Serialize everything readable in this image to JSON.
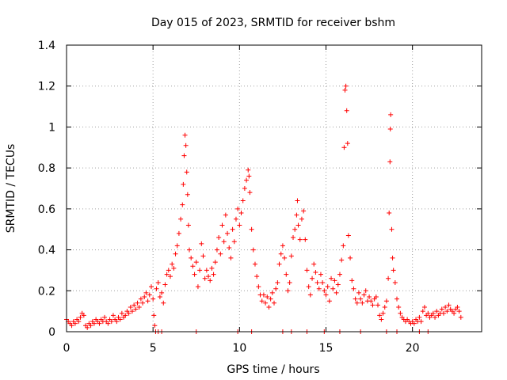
{
  "chart_data": {
    "type": "scatter",
    "title": "Day 015 of 2023, SRMTID for receiver bshm",
    "xlabel": "GPS time / hours",
    "ylabel": "SRMTID / TECUs",
    "xlim": [
      0,
      24
    ],
    "ylim": [
      0,
      1.4
    ],
    "xticks": [
      0,
      5,
      10,
      15,
      20
    ],
    "xtick_labels": [
      "0",
      "5",
      "10",
      "15",
      "20"
    ],
    "yticks": [
      0,
      0.2,
      0.4,
      0.6,
      0.8,
      1.0,
      1.2,
      1.4
    ],
    "ytick_labels": [
      "0",
      "0.2",
      "0.4",
      "0.6",
      "0.8",
      "1",
      "1.2",
      "1.4"
    ],
    "grid": true,
    "marker": "+",
    "color": "#ff0000",
    "series": [
      {
        "name": "SRMTID",
        "points": [
          [
            0.0,
            0.06
          ],
          [
            0.1,
            0.05
          ],
          [
            0.2,
            0.04
          ],
          [
            0.3,
            0.03
          ],
          [
            0.4,
            0.05
          ],
          [
            0.5,
            0.04
          ],
          [
            0.6,
            0.06
          ],
          [
            0.7,
            0.05
          ],
          [
            0.8,
            0.07
          ],
          [
            0.9,
            0.09
          ],
          [
            1.0,
            0.08
          ],
          [
            1.1,
            0.03
          ],
          [
            1.2,
            0.02
          ],
          [
            1.3,
            0.04
          ],
          [
            1.4,
            0.03
          ],
          [
            1.5,
            0.05
          ],
          [
            1.6,
            0.04
          ],
          [
            1.7,
            0.06
          ],
          [
            1.8,
            0.05
          ],
          [
            1.9,
            0.04
          ],
          [
            2.0,
            0.06
          ],
          [
            2.1,
            0.05
          ],
          [
            2.2,
            0.07
          ],
          [
            2.3,
            0.05
          ],
          [
            2.4,
            0.04
          ],
          [
            2.5,
            0.06
          ],
          [
            2.6,
            0.05
          ],
          [
            2.7,
            0.08
          ],
          [
            2.8,
            0.06
          ],
          [
            2.9,
            0.05
          ],
          [
            3.0,
            0.07
          ],
          [
            3.1,
            0.06
          ],
          [
            3.2,
            0.09
          ],
          [
            3.3,
            0.07
          ],
          [
            3.4,
            0.08
          ],
          [
            3.5,
            0.1
          ],
          [
            3.6,
            0.09
          ],
          [
            3.7,
            0.12
          ],
          [
            3.8,
            0.1
          ],
          [
            3.9,
            0.13
          ],
          [
            4.0,
            0.11
          ],
          [
            4.1,
            0.14
          ],
          [
            4.2,
            0.12
          ],
          [
            4.3,
            0.16
          ],
          [
            4.4,
            0.14
          ],
          [
            4.5,
            0.17
          ],
          [
            4.6,
            0.19
          ],
          [
            4.7,
            0.15
          ],
          [
            4.8,
            0.18
          ],
          [
            4.9,
            0.22
          ],
          [
            5.0,
            0.16
          ],
          [
            5.05,
            0.08
          ],
          [
            5.1,
            0.03
          ],
          [
            5.15,
            0.0
          ],
          [
            5.2,
            0.21
          ],
          [
            5.3,
            0.24
          ],
          [
            5.4,
            0.17
          ],
          [
            5.5,
            0.19
          ],
          [
            5.6,
            0.14
          ],
          [
            5.7,
            0.23
          ],
          [
            5.8,
            0.28
          ],
          [
            5.9,
            0.3
          ],
          [
            6.0,
            0.27
          ],
          [
            6.1,
            0.33
          ],
          [
            6.2,
            0.31
          ],
          [
            6.3,
            0.38
          ],
          [
            6.4,
            0.42
          ],
          [
            6.5,
            0.48
          ],
          [
            6.6,
            0.55
          ],
          [
            6.7,
            0.62
          ],
          [
            6.75,
            0.72
          ],
          [
            6.8,
            0.86
          ],
          [
            6.85,
            0.96
          ],
          [
            6.9,
            0.91
          ],
          [
            6.95,
            0.78
          ],
          [
            7.0,
            0.67
          ],
          [
            7.05,
            0.52
          ],
          [
            7.1,
            0.4
          ],
          [
            7.2,
            0.36
          ],
          [
            7.3,
            0.32
          ],
          [
            7.4,
            0.28
          ],
          [
            7.5,
            0.34
          ],
          [
            7.6,
            0.22
          ],
          [
            7.7,
            0.3
          ],
          [
            7.8,
            0.43
          ],
          [
            7.9,
            0.37
          ],
          [
            8.0,
            0.26
          ],
          [
            8.1,
            0.3
          ],
          [
            8.2,
            0.27
          ],
          [
            8.3,
            0.25
          ],
          [
            8.4,
            0.31
          ],
          [
            8.5,
            0.28
          ],
          [
            8.6,
            0.34
          ],
          [
            8.7,
            0.4
          ],
          [
            8.8,
            0.46
          ],
          [
            8.9,
            0.38
          ],
          [
            9.0,
            0.52
          ],
          [
            9.1,
            0.44
          ],
          [
            9.2,
            0.57
          ],
          [
            9.3,
            0.48
          ],
          [
            9.4,
            0.41
          ],
          [
            9.5,
            0.36
          ],
          [
            9.6,
            0.5
          ],
          [
            9.7,
            0.44
          ],
          [
            9.8,
            0.55
          ],
          [
            9.9,
            0.6
          ],
          [
            10.0,
            0.52
          ],
          [
            10.1,
            0.58
          ],
          [
            10.2,
            0.64
          ],
          [
            10.3,
            0.7
          ],
          [
            10.4,
            0.74
          ],
          [
            10.5,
            0.79
          ],
          [
            10.55,
            0.76
          ],
          [
            10.6,
            0.68
          ],
          [
            10.7,
            0.5
          ],
          [
            10.8,
            0.4
          ],
          [
            10.9,
            0.33
          ],
          [
            11.0,
            0.27
          ],
          [
            11.1,
            0.22
          ],
          [
            11.2,
            0.18
          ],
          [
            11.3,
            0.15
          ],
          [
            11.4,
            0.18
          ],
          [
            11.5,
            0.14
          ],
          [
            11.6,
            0.17
          ],
          [
            11.7,
            0.12
          ],
          [
            11.8,
            0.16
          ],
          [
            11.9,
            0.19
          ],
          [
            12.0,
            0.14
          ],
          [
            12.1,
            0.21
          ],
          [
            12.2,
            0.24
          ],
          [
            12.3,
            0.33
          ],
          [
            12.4,
            0.38
          ],
          [
            12.5,
            0.42
          ],
          [
            12.6,
            0.36
          ],
          [
            12.7,
            0.28
          ],
          [
            12.8,
            0.2
          ],
          [
            12.9,
            0.24
          ],
          [
            13.0,
            0.37
          ],
          [
            13.1,
            0.46
          ],
          [
            13.2,
            0.5
          ],
          [
            13.3,
            0.57
          ],
          [
            13.35,
            0.64
          ],
          [
            13.4,
            0.52
          ],
          [
            13.5,
            0.45
          ],
          [
            13.6,
            0.55
          ],
          [
            13.7,
            0.59
          ],
          [
            13.8,
            0.45
          ],
          [
            13.9,
            0.3
          ],
          [
            14.0,
            0.22
          ],
          [
            14.1,
            0.18
          ],
          [
            14.2,
            0.26
          ],
          [
            14.3,
            0.33
          ],
          [
            14.4,
            0.29
          ],
          [
            14.5,
            0.24
          ],
          [
            14.6,
            0.21
          ],
          [
            14.7,
            0.28
          ],
          [
            14.8,
            0.24
          ],
          [
            14.9,
            0.2
          ],
          [
            15.0,
            0.18
          ],
          [
            15.1,
            0.22
          ],
          [
            15.2,
            0.15
          ],
          [
            15.3,
            0.26
          ],
          [
            15.4,
            0.21
          ],
          [
            15.5,
            0.25
          ],
          [
            15.6,
            0.19
          ],
          [
            15.7,
            0.23
          ],
          [
            15.8,
            0.28
          ],
          [
            15.9,
            0.35
          ],
          [
            16.0,
            0.42
          ],
          [
            16.05,
            0.9
          ],
          [
            16.1,
            1.18
          ],
          [
            16.15,
            1.2
          ],
          [
            16.2,
            1.08
          ],
          [
            16.25,
            0.92
          ],
          [
            16.3,
            0.47
          ],
          [
            16.4,
            0.36
          ],
          [
            16.5,
            0.25
          ],
          [
            16.6,
            0.21
          ],
          [
            16.7,
            0.16
          ],
          [
            16.8,
            0.14
          ],
          [
            16.9,
            0.19
          ],
          [
            17.0,
            0.16
          ],
          [
            17.1,
            0.14
          ],
          [
            17.2,
            0.18
          ],
          [
            17.3,
            0.2
          ],
          [
            17.4,
            0.15
          ],
          [
            17.5,
            0.17
          ],
          [
            17.6,
            0.15
          ],
          [
            17.7,
            0.13
          ],
          [
            17.8,
            0.16
          ],
          [
            17.9,
            0.17
          ],
          [
            18.0,
            0.13
          ],
          [
            18.1,
            0.08
          ],
          [
            18.2,
            0.06
          ],
          [
            18.3,
            0.09
          ],
          [
            18.4,
            0.12
          ],
          [
            18.5,
            0.15
          ],
          [
            18.6,
            0.26
          ],
          [
            18.65,
            0.58
          ],
          [
            18.7,
            0.83
          ],
          [
            18.72,
            0.99
          ],
          [
            18.74,
            1.06
          ],
          [
            18.8,
            0.5
          ],
          [
            18.85,
            0.36
          ],
          [
            18.9,
            0.3
          ],
          [
            19.0,
            0.24
          ],
          [
            19.1,
            0.16
          ],
          [
            19.2,
            0.12
          ],
          [
            19.3,
            0.09
          ],
          [
            19.4,
            0.07
          ],
          [
            19.5,
            0.06
          ],
          [
            19.6,
            0.05
          ],
          [
            19.7,
            0.06
          ],
          [
            19.8,
            0.05
          ],
          [
            19.9,
            0.04
          ],
          [
            20.0,
            0.05
          ],
          [
            20.1,
            0.04
          ],
          [
            20.2,
            0.06
          ],
          [
            20.3,
            0.05
          ],
          [
            20.4,
            0.07
          ],
          [
            20.5,
            0.05
          ],
          [
            20.6,
            0.1
          ],
          [
            20.7,
            0.12
          ],
          [
            20.8,
            0.08
          ],
          [
            20.9,
            0.09
          ],
          [
            21.0,
            0.07
          ],
          [
            21.1,
            0.08
          ],
          [
            21.2,
            0.09
          ],
          [
            21.3,
            0.07
          ],
          [
            21.4,
            0.1
          ],
          [
            21.5,
            0.08
          ],
          [
            21.6,
            0.09
          ],
          [
            21.7,
            0.11
          ],
          [
            21.8,
            0.09
          ],
          [
            21.9,
            0.12
          ],
          [
            22.0,
            0.1
          ],
          [
            22.1,
            0.13
          ],
          [
            22.2,
            0.11
          ],
          [
            22.3,
            0.1
          ],
          [
            22.4,
            0.09
          ],
          [
            22.5,
            0.11
          ],
          [
            22.6,
            0.12
          ],
          [
            22.7,
            0.1
          ],
          [
            22.8,
            0.07
          ],
          [
            5.3,
            0.0
          ],
          [
            5.5,
            0.0
          ],
          [
            7.5,
            0.0
          ],
          [
            9.9,
            0.0
          ],
          [
            10.7,
            0.0
          ],
          [
            12.5,
            0.0
          ],
          [
            13.0,
            0.0
          ],
          [
            13.9,
            0.0
          ],
          [
            14.9,
            0.0
          ],
          [
            15.8,
            0.0
          ],
          [
            17.0,
            0.0
          ],
          [
            18.5,
            0.0
          ],
          [
            19.1,
            0.0
          ],
          [
            20.4,
            0.0
          ],
          [
            20.9,
            0.0
          ]
        ]
      }
    ]
  }
}
